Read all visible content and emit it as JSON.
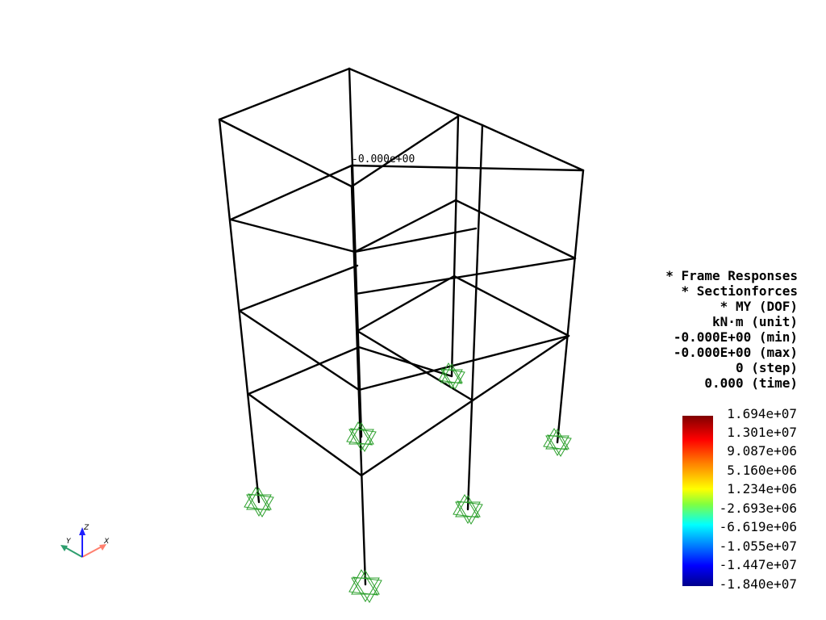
{
  "node_annotation": "-0.000e+00",
  "info": {
    "lines": [
      "* Frame Responses",
      "* Sectionforces",
      "* MY (DOF)",
      "kN·m (unit)",
      "-0.000E+00 (min)",
      "-0.000E+00 (max)",
      "0 (step)",
      "0.000 (time)"
    ]
  },
  "colorbar": {
    "labels": [
      "1.694e+07",
      "1.301e+07",
      "9.087e+06",
      "5.160e+06",
      "1.234e+06",
      "-2.693e+06",
      "-6.619e+06",
      "-1.055e+07",
      "-1.447e+07",
      "-1.840e+07"
    ]
  },
  "axes": {
    "x": "X",
    "y": "Y",
    "z": "Z"
  },
  "colors": {
    "frame": "#000000",
    "support": "#2ca02c",
    "axis_x": "#ff7f6e",
    "axis_y": "#2e9e6e",
    "axis_z": "#1f1fff"
  }
}
